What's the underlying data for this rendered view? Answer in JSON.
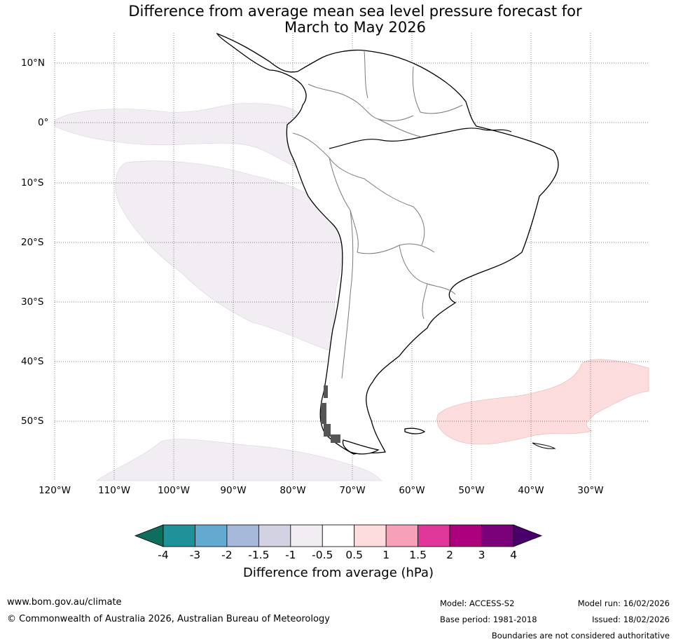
{
  "title_line1": "Difference from average mean sea level pressure forecast for",
  "title_line2": "March to May 2026",
  "lat_labels": [
    "10°N",
    "0°",
    "10°S",
    "20°S",
    "30°S",
    "40°S",
    "50°S"
  ],
  "lon_labels": [
    "120°W",
    "110°W",
    "100°W",
    "90°W",
    "80°W",
    "70°W",
    "60°W",
    "50°W",
    "40°W",
    "30°W"
  ],
  "legend": {
    "ticks": [
      "-4",
      "-3",
      "-2",
      "-1.5",
      "-1",
      "-0.5",
      "0.5",
      "1",
      "1.5",
      "2",
      "3",
      "4"
    ],
    "colors": [
      "#0d6e5e",
      "#1f9199",
      "#64a9d0",
      "#a6b9da",
      "#d2d2e3",
      "#f1edf3",
      "#ffffff",
      "#fcdcdc",
      "#f7a1b9",
      "#df379a",
      "#ad007e",
      "#790079",
      "#4a006a"
    ],
    "label": "Difference from average (hPa)"
  },
  "footer": {
    "website": "www.bom.gov.au/climate",
    "copyright": "© Commonwealth of Australia 2026, Australian Bureau of Meteorology",
    "model": "Model: ACCESS-S2",
    "base_period": "Base period: 1981-2018",
    "model_run": "Model run: 16/02/2026",
    "issued": "Issued: 18/02/2026",
    "disclaimer": "Boundaries are not considered authoritative"
  }
}
